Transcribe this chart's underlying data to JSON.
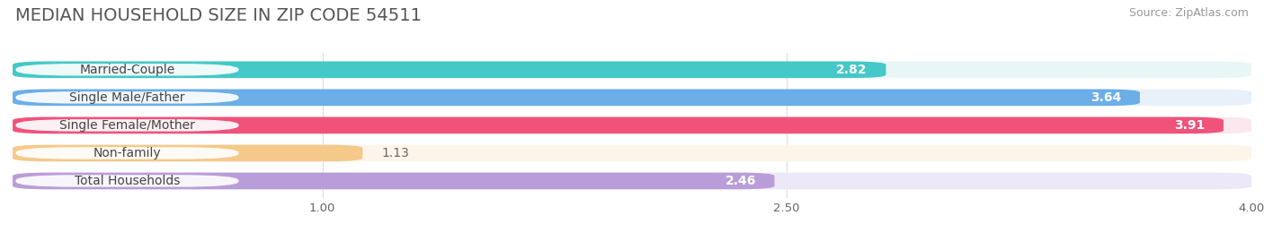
{
  "title": "MEDIAN HOUSEHOLD SIZE IN ZIP CODE 54511",
  "source": "Source: ZipAtlas.com",
  "categories": [
    "Married-Couple",
    "Single Male/Father",
    "Single Female/Mother",
    "Non-family",
    "Total Households"
  ],
  "values": [
    2.82,
    3.64,
    3.91,
    1.13,
    2.46
  ],
  "bar_colors": [
    "#45C8C8",
    "#6BAEE8",
    "#F0527A",
    "#F5C98A",
    "#B99DD8"
  ],
  "bar_bg_colors": [
    "#E8F6F6",
    "#E8F1FA",
    "#FAE8EE",
    "#FDF5EA",
    "#EDE8F8"
  ],
  "value_colors": [
    "#FFFFFF",
    "#FFFFFF",
    "#FFFFFF",
    "#888888",
    "#FFFFFF"
  ],
  "xlim_data": [
    0.0,
    4.0
  ],
  "xmin": 0.0,
  "xmax": 4.0,
  "xticks": [
    1.0,
    2.5,
    4.0
  ],
  "title_fontsize": 14,
  "source_fontsize": 9,
  "label_fontsize": 10,
  "value_fontsize": 10,
  "background_color": "#FFFFFF",
  "plot_bg_color": "#FFFFFF"
}
